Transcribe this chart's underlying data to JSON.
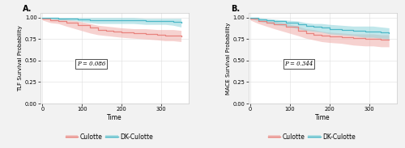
{
  "panel_A": {
    "title": "A.",
    "ylabel": "TLF Survival Probability",
    "xlabel": "Time",
    "pvalue": "P = 0.086",
    "culotte": {
      "x": [
        0,
        20,
        40,
        60,
        90,
        120,
        140,
        160,
        180,
        200,
        230,
        260,
        290,
        310,
        330,
        350
      ],
      "y": [
        0.99,
        0.97,
        0.96,
        0.94,
        0.91,
        0.88,
        0.86,
        0.85,
        0.84,
        0.83,
        0.82,
        0.81,
        0.8,
        0.79,
        0.79,
        0.78
      ],
      "y_upper": [
        1.0,
        0.99,
        0.99,
        0.98,
        0.96,
        0.93,
        0.91,
        0.9,
        0.89,
        0.88,
        0.87,
        0.87,
        0.86,
        0.86,
        0.86,
        0.85
      ],
      "y_lower": [
        0.97,
        0.94,
        0.93,
        0.9,
        0.86,
        0.82,
        0.8,
        0.79,
        0.78,
        0.77,
        0.76,
        0.75,
        0.74,
        0.73,
        0.73,
        0.72
      ],
      "color": "#e8837e",
      "fill_color": "#f0aeaa"
    },
    "dk_culotte": {
      "x": [
        0,
        20,
        40,
        60,
        90,
        120,
        140,
        160,
        180,
        200,
        230,
        260,
        290,
        310,
        330,
        350
      ],
      "y": [
        1.0,
        0.995,
        0.99,
        0.99,
        0.98,
        0.97,
        0.97,
        0.97,
        0.97,
        0.97,
        0.97,
        0.96,
        0.96,
        0.96,
        0.95,
        0.94
      ],
      "y_upper": [
        1.0,
        1.0,
        1.0,
        1.0,
        1.0,
        1.0,
        1.0,
        1.0,
        1.0,
        1.0,
        1.0,
        0.99,
        0.99,
        0.99,
        0.99,
        0.99
      ],
      "y_lower": [
        0.99,
        0.985,
        0.97,
        0.97,
        0.96,
        0.94,
        0.93,
        0.93,
        0.93,
        0.93,
        0.93,
        0.92,
        0.92,
        0.92,
        0.91,
        0.89
      ],
      "color": "#4db8c8",
      "fill_color": "#8ed4dc"
    },
    "xlim": [
      -5,
      370
    ],
    "ylim": [
      0.0,
      1.049
    ],
    "xticks": [
      0,
      100,
      200,
      300
    ],
    "yticks": [
      0.0,
      0.25,
      0.5,
      0.75,
      1.0
    ]
  },
  "panel_B": {
    "title": "B.",
    "ylabel": "MACE Survival Probability",
    "xlabel": "Time",
    "pvalue": "P = 0.344",
    "culotte": {
      "x": [
        0,
        20,
        40,
        60,
        90,
        120,
        140,
        160,
        180,
        200,
        230,
        260,
        290,
        310,
        330,
        350
      ],
      "y": [
        0.99,
        0.96,
        0.94,
        0.92,
        0.89,
        0.85,
        0.82,
        0.8,
        0.79,
        0.78,
        0.77,
        0.76,
        0.75,
        0.75,
        0.74,
        0.74
      ],
      "y_upper": [
        1.0,
        0.99,
        0.97,
        0.96,
        0.93,
        0.9,
        0.87,
        0.86,
        0.84,
        0.83,
        0.82,
        0.81,
        0.81,
        0.81,
        0.8,
        0.8
      ],
      "y_lower": [
        0.97,
        0.93,
        0.9,
        0.87,
        0.83,
        0.79,
        0.76,
        0.74,
        0.72,
        0.71,
        0.7,
        0.68,
        0.67,
        0.67,
        0.66,
        0.66
      ],
      "color": "#e8837e",
      "fill_color": "#f0aeaa"
    },
    "dk_culotte": {
      "x": [
        0,
        20,
        40,
        60,
        90,
        120,
        140,
        160,
        180,
        200,
        230,
        260,
        290,
        310,
        330,
        350
      ],
      "y": [
        1.0,
        0.98,
        0.97,
        0.96,
        0.94,
        0.92,
        0.9,
        0.89,
        0.88,
        0.87,
        0.86,
        0.85,
        0.84,
        0.84,
        0.83,
        0.82
      ],
      "y_upper": [
        1.0,
        1.0,
        0.99,
        0.98,
        0.97,
        0.96,
        0.94,
        0.93,
        0.93,
        0.92,
        0.91,
        0.9,
        0.9,
        0.9,
        0.89,
        0.88
      ],
      "y_lower": [
        0.99,
        0.96,
        0.94,
        0.92,
        0.9,
        0.87,
        0.85,
        0.84,
        0.83,
        0.81,
        0.8,
        0.79,
        0.77,
        0.77,
        0.76,
        0.75
      ],
      "color": "#4db8c8",
      "fill_color": "#8ed4dc"
    },
    "xlim": [
      -5,
      370
    ],
    "ylim": [
      0.0,
      1.049
    ],
    "xticks": [
      0,
      100,
      200,
      300
    ],
    "yticks": [
      0.0,
      0.25,
      0.5,
      0.75,
      1.0
    ]
  },
  "legend": {
    "culotte_label": "Culotte",
    "dk_culotte_label": "DK-Culotte",
    "culotte_color": "#e8837e",
    "culotte_fill": "#f0aeaa",
    "dk_culotte_color": "#4db8c8",
    "dk_culotte_fill": "#8ed4dc"
  },
  "background_color": "#f2f2f2",
  "panel_bg": "#ffffff",
  "grid_color": "#dddddd",
  "border_color": "#cccccc"
}
